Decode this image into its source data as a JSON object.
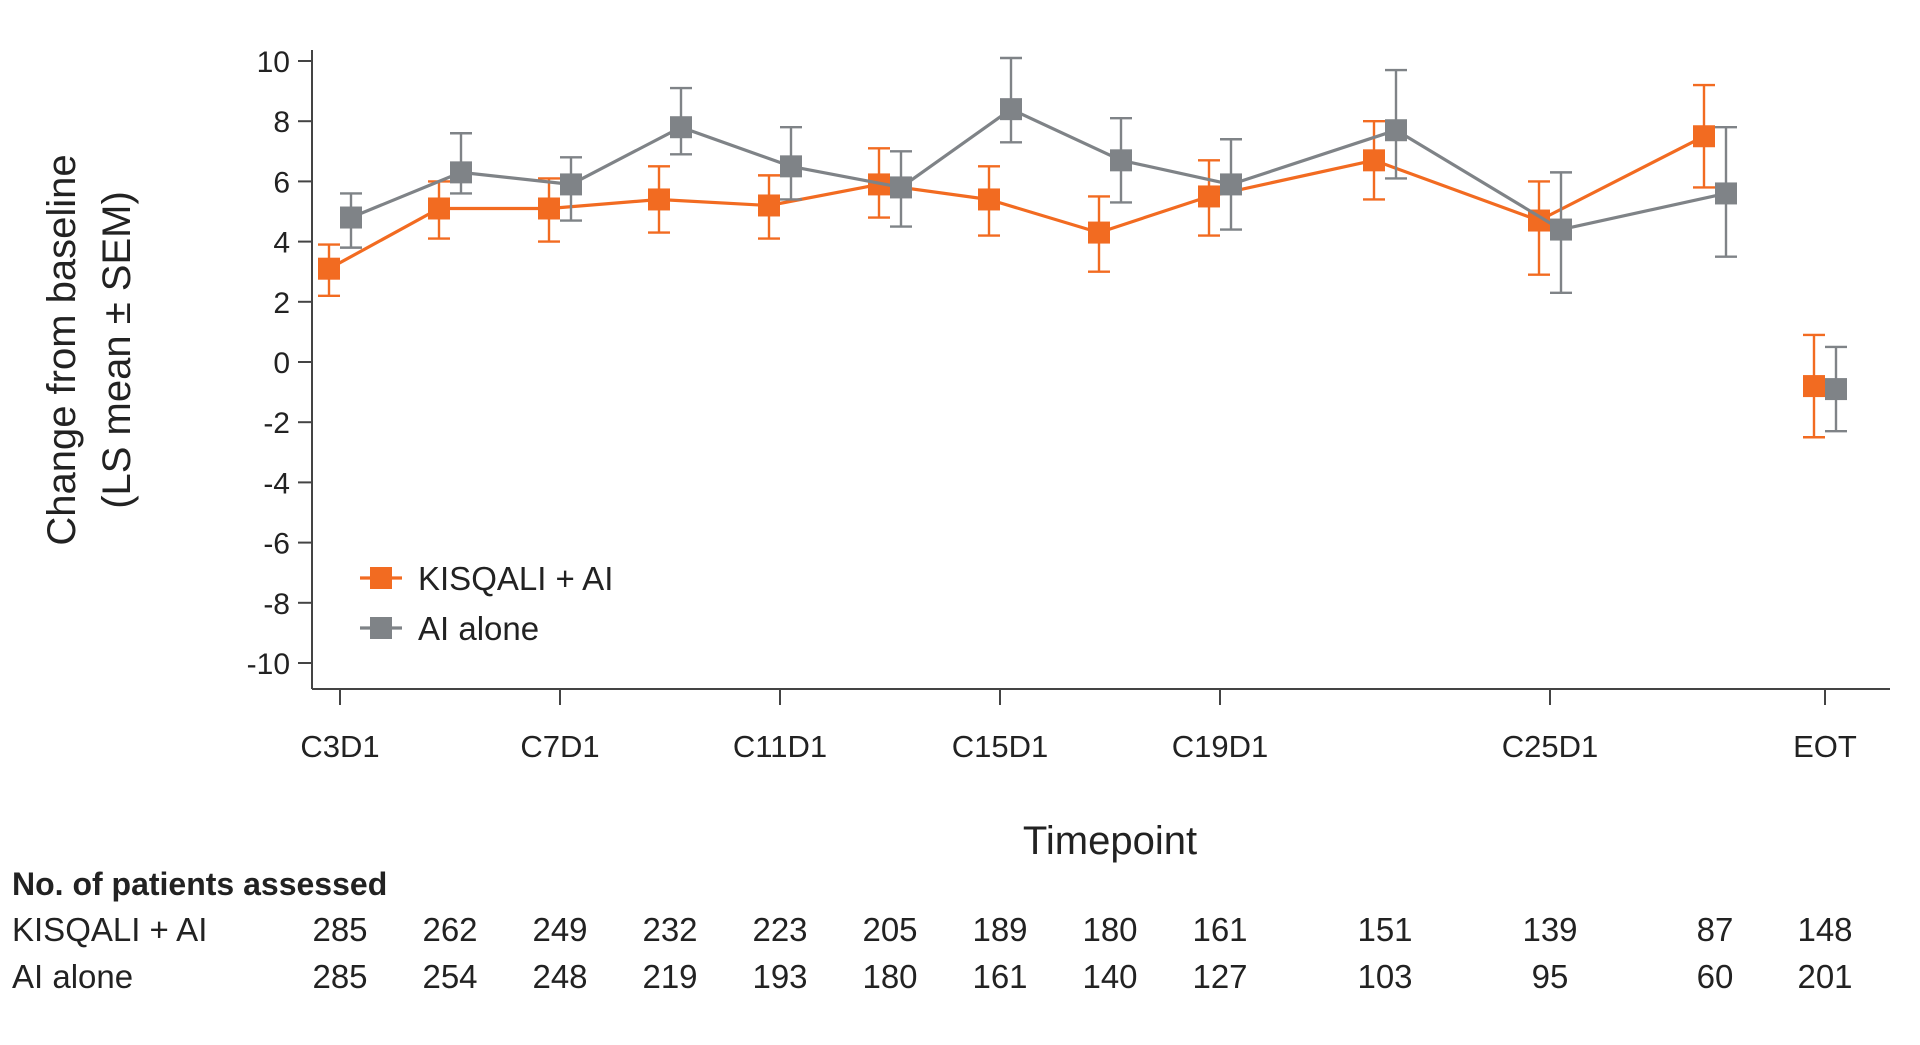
{
  "chart_data": {
    "type": "line",
    "xlabel": "Timepoint",
    "ylabel": [
      "Change from baseline",
      "(LS mean ± SEM)"
    ],
    "ylim": [
      -10,
      10
    ],
    "y_ticks": [
      10,
      8,
      6,
      4,
      2,
      0,
      -2,
      -4,
      -6,
      -8,
      -10
    ],
    "x_tick_labels": [
      "C3D1",
      "C7D1",
      "C11D1",
      "C15D1",
      "C19D1",
      "C25D1",
      "EOT"
    ],
    "x_tick_slots": [
      0,
      2,
      4,
      6,
      8,
      11,
      13.5
    ],
    "legend_position": "lower-left",
    "grid": false,
    "series": [
      {
        "name": "KISQALI + AI",
        "color": "#F26B21",
        "points": [
          {
            "slot": -0.1,
            "y": 3.1,
            "lo": 2.2,
            "hi": 3.9
          },
          {
            "slot": 0.9,
            "y": 5.1,
            "lo": 4.1,
            "hi": 6.0
          },
          {
            "slot": 1.9,
            "y": 5.1,
            "lo": 4.0,
            "hi": 6.1
          },
          {
            "slot": 2.9,
            "y": 5.4,
            "lo": 4.3,
            "hi": 6.5
          },
          {
            "slot": 3.9,
            "y": 5.2,
            "lo": 4.1,
            "hi": 6.2
          },
          {
            "slot": 4.9,
            "y": 5.9,
            "lo": 4.8,
            "hi": 7.1
          },
          {
            "slot": 5.9,
            "y": 5.4,
            "lo": 4.2,
            "hi": 6.5
          },
          {
            "slot": 6.9,
            "y": 4.3,
            "lo": 3.0,
            "hi": 5.5
          },
          {
            "slot": 7.9,
            "y": 5.5,
            "lo": 4.2,
            "hi": 6.7
          },
          {
            "slot": 9.4,
            "y": 6.7,
            "lo": 5.4,
            "hi": 8.0
          },
          {
            "slot": 10.9,
            "y": 4.7,
            "lo": 2.9,
            "hi": 6.0
          },
          {
            "slot": 12.4,
            "y": 7.5,
            "lo": 5.8,
            "hi": 9.2
          },
          {
            "slot": 13.4,
            "y": -0.8,
            "lo": -2.5,
            "hi": 0.9
          }
        ]
      },
      {
        "name": "AI alone",
        "color": "#7F8387",
        "points": [
          {
            "slot": 0.1,
            "y": 4.8,
            "lo": 3.8,
            "hi": 5.6
          },
          {
            "slot": 1.1,
            "y": 6.3,
            "lo": 5.6,
            "hi": 7.6
          },
          {
            "slot": 2.1,
            "y": 5.9,
            "lo": 4.7,
            "hi": 6.8
          },
          {
            "slot": 3.1,
            "y": 7.8,
            "lo": 6.9,
            "hi": 9.1
          },
          {
            "slot": 4.1,
            "y": 6.5,
            "lo": 5.4,
            "hi": 7.8
          },
          {
            "slot": 5.1,
            "y": 5.8,
            "lo": 4.5,
            "hi": 7.0
          },
          {
            "slot": 6.1,
            "y": 8.4,
            "lo": 7.3,
            "hi": 10.1
          },
          {
            "slot": 7.1,
            "y": 6.7,
            "lo": 5.3,
            "hi": 8.1
          },
          {
            "slot": 8.1,
            "y": 5.9,
            "lo": 4.4,
            "hi": 7.4
          },
          {
            "slot": 9.6,
            "y": 7.7,
            "lo": 6.1,
            "hi": 9.7
          },
          {
            "slot": 11.1,
            "y": 4.4,
            "lo": 2.3,
            "hi": 6.3
          },
          {
            "slot": 12.6,
            "y": 5.6,
            "lo": 3.5,
            "hi": 7.8
          },
          {
            "slot": 13.6,
            "y": -0.9,
            "lo": -2.3,
            "hi": 0.5
          }
        ]
      }
    ],
    "patients_table": {
      "title": "No. of patients assessed",
      "col_slots": [
        0,
        1,
        2,
        3,
        4,
        5,
        6,
        7,
        8,
        9.5,
        11,
        12.5,
        13.5
      ],
      "rows": [
        {
          "label": "KISQALI + AI",
          "values": [
            "285",
            "262",
            "249",
            "232",
            "223",
            "205",
            "189",
            "180",
            "161",
            "151",
            "139",
            "87",
            "148"
          ]
        },
        {
          "label": "AI alone",
          "values": [
            "285",
            "254",
            "248",
            "219",
            "193",
            "180",
            "161",
            "140",
            "127",
            "103",
            "95",
            "60",
            "201"
          ]
        }
      ]
    }
  }
}
